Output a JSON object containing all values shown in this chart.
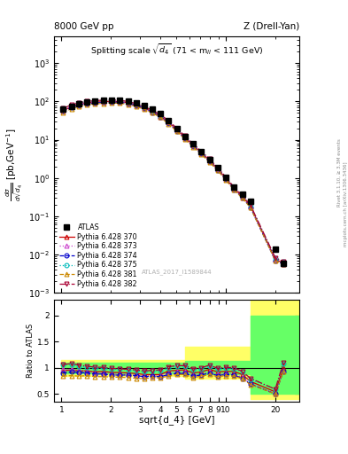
{
  "title_left": "8000 GeV pp",
  "title_right": "Z (Drell-Yan)",
  "plot_title": "Splitting scale $\\sqrt{\\overline{d_4}}$ (71 < m$_{ll}$ < 111 GeV)",
  "watermark": "ATLAS_2017_I1589844",
  "atlas_x": [
    1.02,
    1.15,
    1.28,
    1.43,
    1.6,
    1.8,
    2.02,
    2.26,
    2.54,
    2.84,
    3.19,
    3.57,
    4.0,
    4.49,
    5.03,
    5.64,
    6.32,
    7.09,
    7.95,
    8.91,
    10.0,
    11.2,
    12.6,
    14.1,
    20.0,
    22.4
  ],
  "atlas_y": [
    62,
    75,
    88,
    97,
    103,
    107,
    110,
    110,
    102,
    92,
    78,
    62,
    47,
    31,
    19,
    12,
    8.0,
    5.0,
    3.0,
    1.9,
    1.05,
    0.58,
    0.38,
    0.25,
    0.014,
    0.006
  ],
  "py370_x": [
    1.02,
    1.15,
    1.28,
    1.43,
    1.6,
    1.8,
    2.02,
    2.26,
    2.54,
    2.84,
    3.19,
    3.57,
    4.0,
    4.49,
    5.03,
    5.64,
    6.32,
    7.09,
    7.95,
    8.91,
    10.0,
    11.2,
    12.6,
    14.1,
    20.0,
    22.4
  ],
  "py370_y": [
    58,
    72,
    83,
    91,
    95,
    99,
    100,
    100,
    92,
    82,
    68,
    54,
    41,
    29,
    18,
    11.5,
    7.2,
    4.6,
    2.9,
    1.75,
    0.98,
    0.54,
    0.33,
    0.185,
    0.0075,
    0.006
  ],
  "py373_x": [
    1.02,
    1.15,
    1.28,
    1.43,
    1.6,
    1.8,
    2.02,
    2.26,
    2.54,
    2.84,
    3.19,
    3.57,
    4.0,
    4.49,
    5.03,
    5.64,
    6.32,
    7.09,
    7.95,
    8.91,
    10.0,
    11.2,
    12.6,
    14.1,
    20.0,
    22.4
  ],
  "py373_y": [
    60,
    73,
    84,
    90,
    93,
    96,
    97,
    97,
    89,
    79,
    66,
    53,
    40,
    28,
    17.5,
    11.0,
    6.9,
    4.4,
    2.75,
    1.65,
    0.93,
    0.51,
    0.31,
    0.175,
    0.0072,
    0.0057
  ],
  "py374_x": [
    1.02,
    1.15,
    1.28,
    1.43,
    1.6,
    1.8,
    2.02,
    2.26,
    2.54,
    2.84,
    3.19,
    3.57,
    4.0,
    4.49,
    5.03,
    5.64,
    6.32,
    7.09,
    7.95,
    8.91,
    10.0,
    11.2,
    12.6,
    14.1,
    20.0,
    22.4
  ],
  "py374_y": [
    56,
    69,
    80,
    87,
    91,
    94,
    95,
    95,
    88,
    78,
    65,
    52,
    39,
    27,
    17.0,
    10.7,
    6.7,
    4.3,
    2.7,
    1.62,
    0.91,
    0.5,
    0.305,
    0.172,
    0.007,
    0.0056
  ],
  "py375_x": [
    1.02,
    1.15,
    1.28,
    1.43,
    1.6,
    1.8,
    2.02,
    2.26,
    2.54,
    2.84,
    3.19,
    3.57,
    4.0,
    4.49,
    5.03,
    5.64,
    6.32,
    7.09,
    7.95,
    8.91,
    10.0,
    11.2,
    12.6,
    14.1,
    20.0,
    22.4
  ],
  "py375_y": [
    66,
    80,
    91,
    98,
    102,
    106,
    107,
    107,
    98,
    87,
    72,
    58,
    44,
    31,
    19.5,
    12.3,
    7.7,
    4.9,
    3.1,
    1.85,
    1.04,
    0.57,
    0.35,
    0.196,
    0.0082,
    0.0065
  ],
  "py381_x": [
    1.02,
    1.15,
    1.28,
    1.43,
    1.6,
    1.8,
    2.02,
    2.26,
    2.54,
    2.84,
    3.19,
    3.57,
    4.0,
    4.49,
    5.03,
    5.64,
    6.32,
    7.09,
    7.95,
    8.91,
    10.0,
    11.2,
    12.6,
    14.1,
    20.0,
    22.4
  ],
  "py381_y": [
    52,
    64,
    74,
    82,
    86,
    89,
    90,
    90,
    83,
    74,
    62,
    50,
    38,
    26,
    16.5,
    10.4,
    6.5,
    4.2,
    2.6,
    1.58,
    0.89,
    0.49,
    0.3,
    0.17,
    0.007,
    0.0056
  ],
  "py382_x": [
    1.02,
    1.15,
    1.28,
    1.43,
    1.6,
    1.8,
    2.02,
    2.26,
    2.54,
    2.84,
    3.19,
    3.57,
    4.0,
    4.49,
    5.03,
    5.64,
    6.32,
    7.09,
    7.95,
    8.91,
    10.0,
    11.2,
    12.6,
    14.1,
    20.0,
    22.4
  ],
  "py382_y": [
    66,
    81,
    92,
    100,
    104,
    108,
    109,
    108,
    99,
    88,
    73,
    59,
    45,
    31.5,
    19.8,
    12.5,
    7.85,
    5.0,
    3.15,
    1.88,
    1.06,
    0.58,
    0.355,
    0.199,
    0.0083,
    0.0066
  ],
  "colors": {
    "py370": "#cc0000",
    "py373": "#cc44cc",
    "py374": "#0000cc",
    "py375": "#00bbbb",
    "py381": "#cc8800",
    "py382": "#aa0033"
  },
  "ratio_py370": [
    0.94,
    0.96,
    0.94,
    0.94,
    0.92,
    0.93,
    0.91,
    0.91,
    0.9,
    0.89,
    0.87,
    0.87,
    0.87,
    0.94,
    0.95,
    0.96,
    0.9,
    0.92,
    0.97,
    0.92,
    0.93,
    0.93,
    0.87,
    0.74,
    0.54,
    1.0
  ],
  "ratio_py373": [
    0.97,
    0.97,
    0.95,
    0.93,
    0.9,
    0.9,
    0.88,
    0.88,
    0.87,
    0.86,
    0.85,
    0.85,
    0.85,
    0.9,
    0.92,
    0.92,
    0.86,
    0.88,
    0.92,
    0.87,
    0.89,
    0.88,
    0.82,
    0.7,
    0.51,
    0.95
  ],
  "ratio_py374": [
    0.9,
    0.92,
    0.91,
    0.9,
    0.88,
    0.88,
    0.86,
    0.86,
    0.86,
    0.85,
    0.83,
    0.84,
    0.83,
    0.87,
    0.89,
    0.89,
    0.84,
    0.86,
    0.9,
    0.85,
    0.87,
    0.86,
    0.8,
    0.69,
    0.5,
    0.93
  ],
  "ratio_py375": [
    1.06,
    1.07,
    1.03,
    1.01,
    0.99,
    0.99,
    0.97,
    0.97,
    0.96,
    0.95,
    0.92,
    0.94,
    0.94,
    1.0,
    1.03,
    1.03,
    0.96,
    0.98,
    1.03,
    0.97,
    0.99,
    0.98,
    0.92,
    0.78,
    0.59,
    1.08
  ],
  "ratio_py381": [
    0.84,
    0.85,
    0.84,
    0.85,
    0.83,
    0.83,
    0.82,
    0.82,
    0.81,
    0.8,
    0.79,
    0.81,
    0.81,
    0.84,
    0.87,
    0.87,
    0.81,
    0.84,
    0.87,
    0.83,
    0.85,
    0.84,
    0.79,
    0.68,
    0.5,
    0.93
  ],
  "ratio_py382": [
    1.06,
    1.08,
    1.05,
    1.03,
    1.01,
    1.01,
    0.99,
    0.98,
    0.97,
    0.96,
    0.94,
    0.95,
    0.96,
    1.02,
    1.04,
    1.04,
    0.98,
    1.0,
    1.05,
    0.99,
    1.01,
    1.0,
    0.93,
    0.8,
    0.59,
    1.1
  ],
  "ylim_main": [
    0.001,
    5000.0
  ],
  "ylim_ratio": [
    0.35,
    2.3
  ],
  "xlim": [
    0.9,
    28.0
  ],
  "band_edges": [
    1.0,
    5.64,
    14.1,
    28.0
  ],
  "green_low": [
    0.9,
    0.87,
    0.5
  ],
  "green_high": [
    1.1,
    1.13,
    2.0
  ],
  "yellow_low": [
    0.85,
    0.8,
    0.4
  ],
  "yellow_high": [
    1.15,
    1.4,
    2.5
  ]
}
